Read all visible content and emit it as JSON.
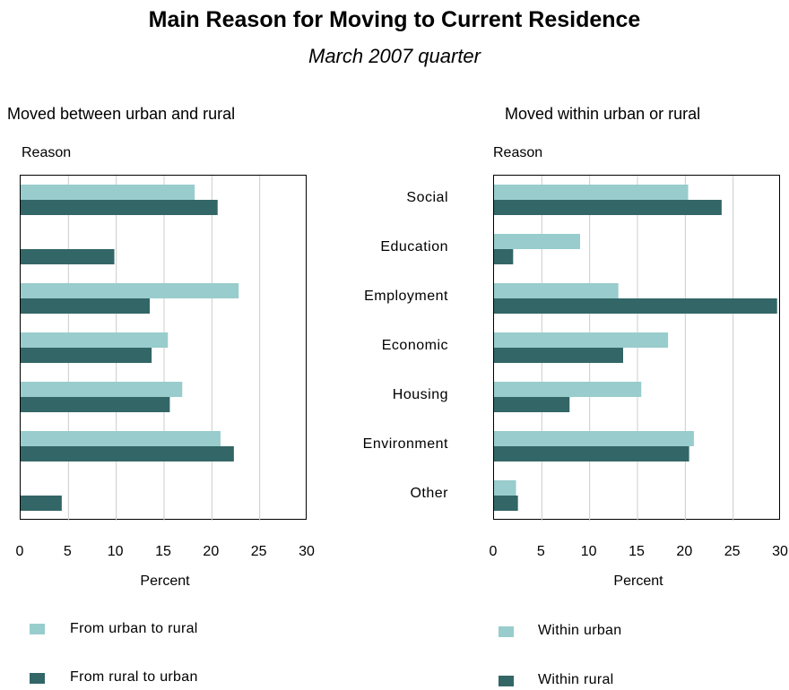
{
  "title": "Main Reason for Moving to Current Residence",
  "subtitle": "March 2007 quarter",
  "colors": {
    "light": "#99cccc",
    "dark": "#336666",
    "grid": "#cccccc"
  },
  "categories": [
    "Social",
    "Education",
    "Employment",
    "Economic",
    "Housing",
    "Environment",
    "Other"
  ],
  "chart_data": [
    {
      "type": "bar",
      "title": "Moved between urban and rural",
      "ylabel": "Reason",
      "xlabel": "Percent",
      "xlim": [
        0,
        30
      ],
      "x_ticks": [
        "0",
        "5",
        "10",
        "15",
        "20",
        "25",
        "30"
      ],
      "categories": [
        "Social",
        "Education",
        "Employment",
        "Economic",
        "Housing",
        "Environment",
        "Other"
      ],
      "series": [
        {
          "name": "From urban to rural",
          "values": [
            18.2,
            0,
            22.8,
            15.4,
            16.9,
            20.9,
            0
          ]
        },
        {
          "name": "From rural to urban",
          "values": [
            20.6,
            9.8,
            13.5,
            13.7,
            15.6,
            22.3,
            4.3
          ]
        }
      ],
      "grid": true,
      "legend": "bottom"
    },
    {
      "type": "bar",
      "title": "Moved within urban or rural",
      "ylabel": "Reason",
      "xlabel": "Percent",
      "xlim": [
        0,
        30
      ],
      "x_ticks": [
        "0",
        "5",
        "10",
        "15",
        "20",
        "25",
        "30"
      ],
      "categories": [
        "Social",
        "Education",
        "Employment",
        "Economic",
        "Housing",
        "Environment",
        "Other"
      ],
      "series": [
        {
          "name": "Within urban",
          "values": [
            20.3,
            9.0,
            13.0,
            18.2,
            15.4,
            20.9,
            2.3
          ]
        },
        {
          "name": "Within rural",
          "values": [
            23.8,
            2.0,
            29.6,
            13.5,
            7.9,
            20.4,
            2.5
          ]
        }
      ],
      "grid": true,
      "legend": "bottom"
    }
  ]
}
